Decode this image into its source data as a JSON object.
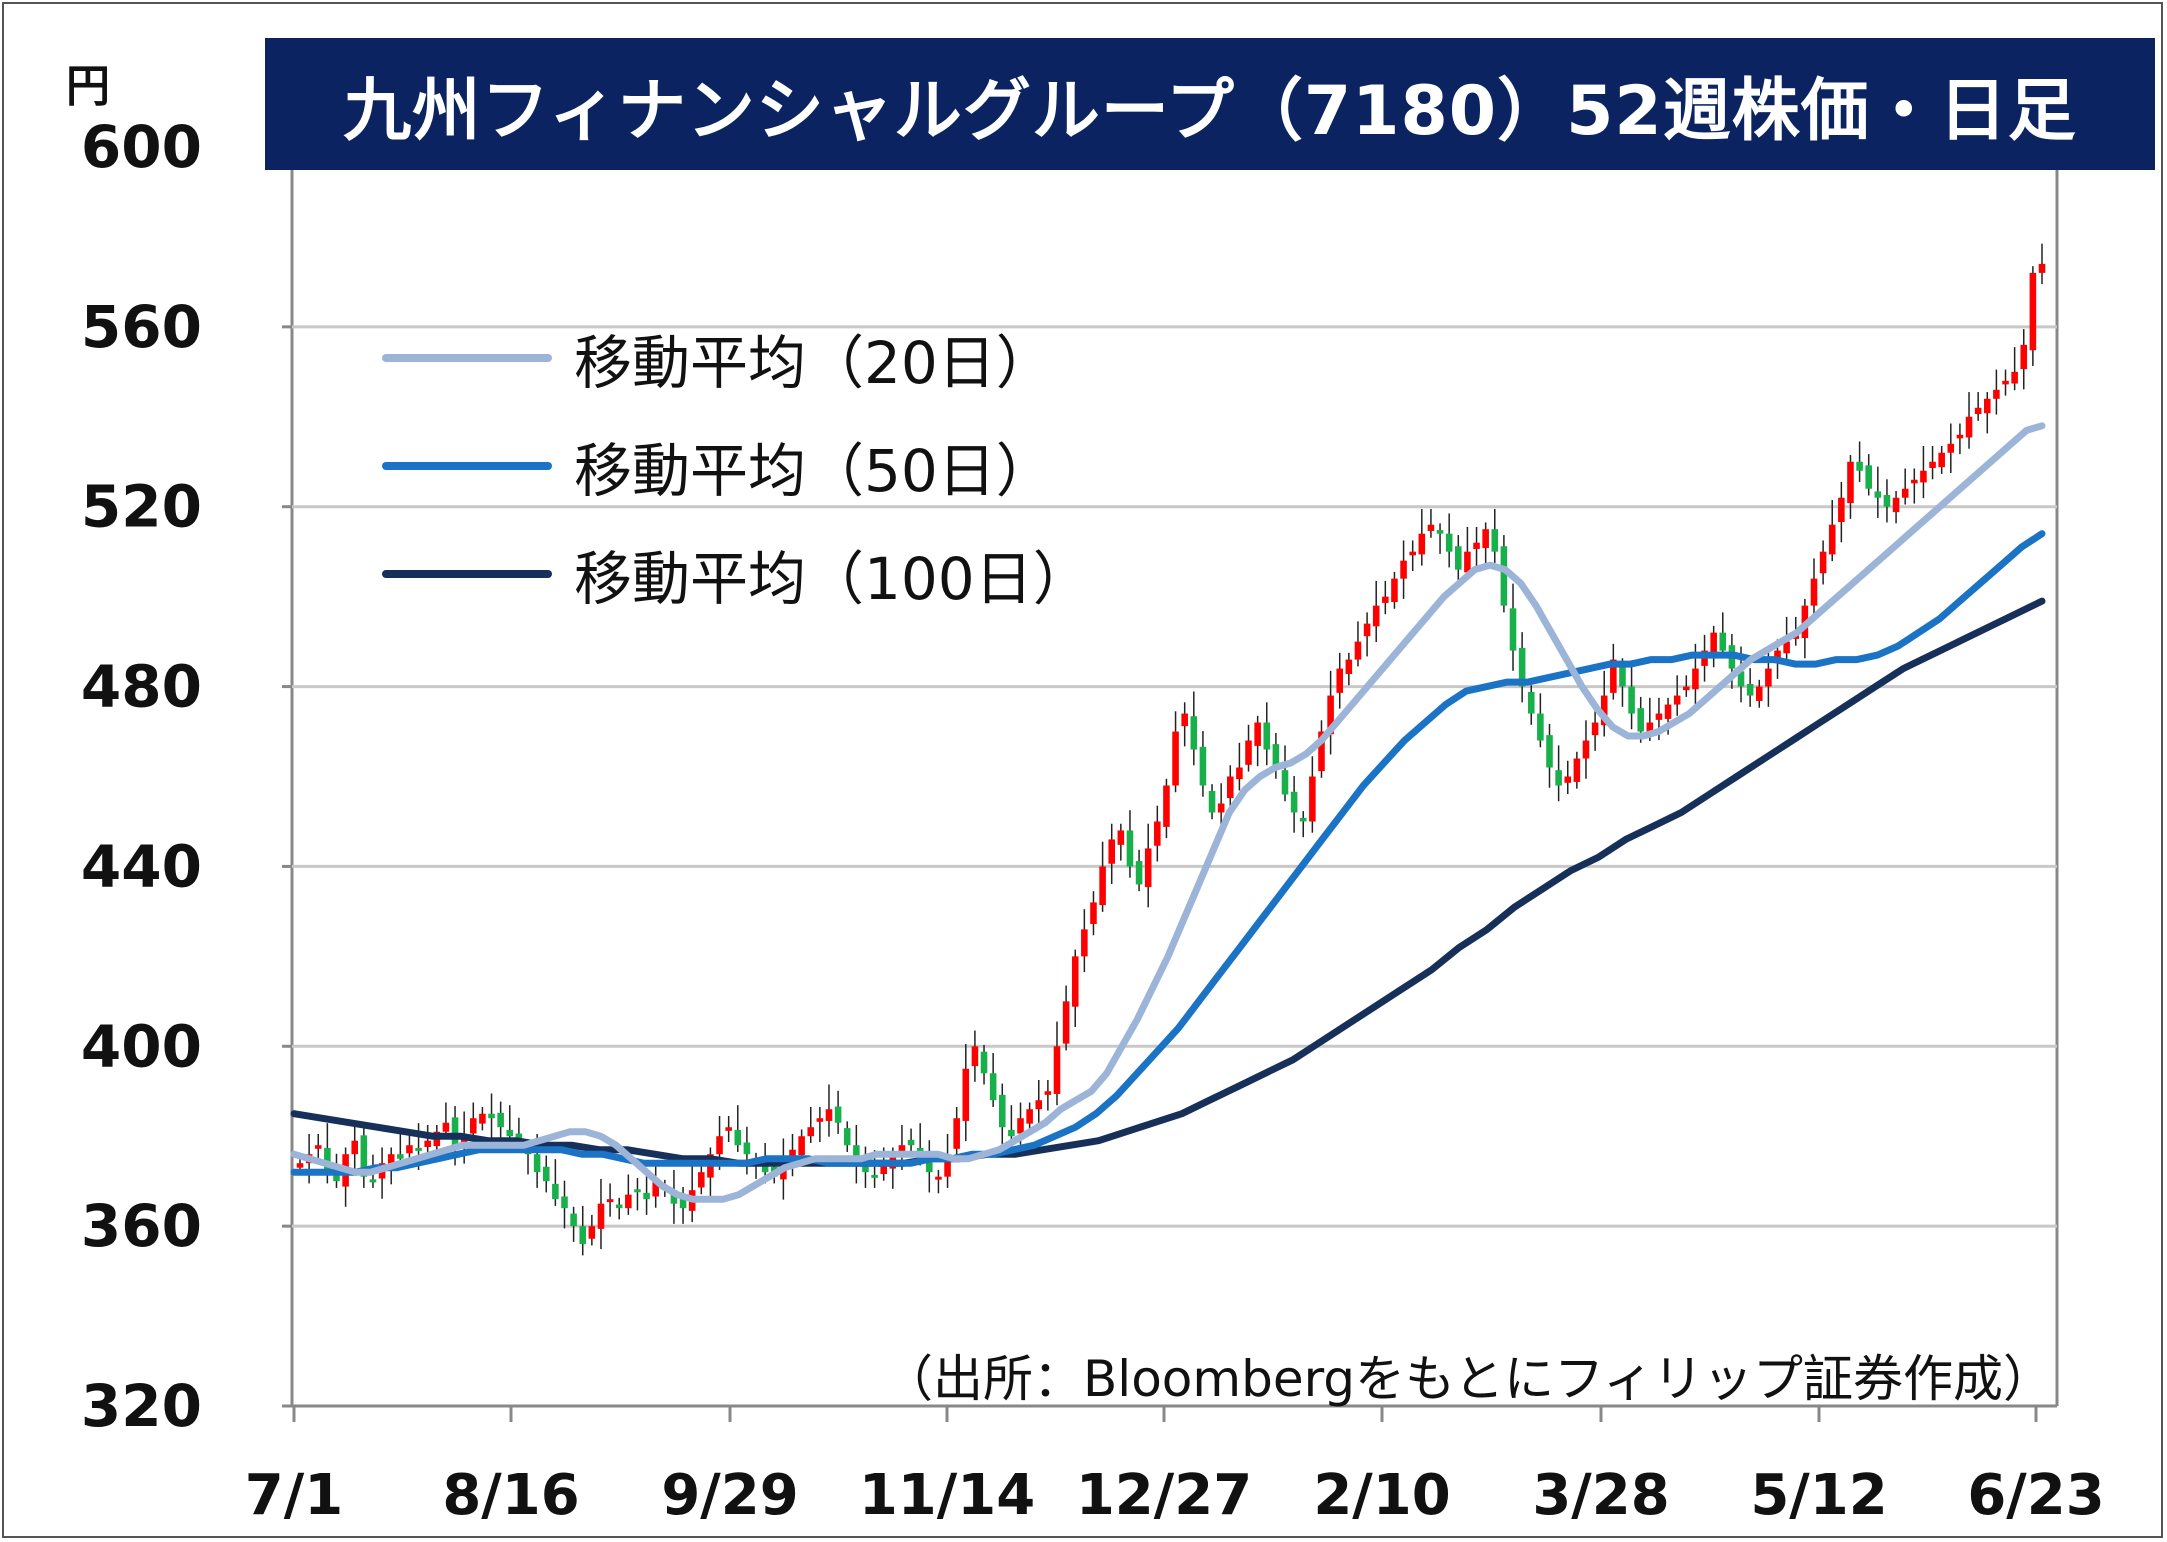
{
  "chart_data": {
    "type": "candlestick",
    "title": "九州フィナンシャルグループ（7180）52週株価・日足",
    "unit": "円",
    "source": "（出所：Bloombergをもとにフィリップ証券作成）",
    "ylim": [
      320,
      600
    ],
    "yticks": [
      "320",
      "360",
      "400",
      "440",
      "480",
      "520",
      "560",
      "600"
    ],
    "xticks": [
      "7/1",
      "8/16",
      "9/29",
      "11/14",
      "12/27",
      "2/10",
      "3/28",
      "5/12",
      "6/23"
    ],
    "grid": true,
    "legend_position": "top-left",
    "colors": {
      "up": "#ff0000",
      "down": "#18b04a",
      "ma20": "#9bb4d8",
      "ma50": "#1a73c4",
      "ma100": "#16305a",
      "title_bg": "#0b2461"
    },
    "series": [
      {
        "name": "移動平均（20日）"
      },
      {
        "name": "移動平均（50日）"
      },
      {
        "name": "移動平均（100日）"
      }
    ],
    "closes": [
      374,
      376,
      378,
      372,
      370,
      376,
      379,
      371,
      370,
      374,
      376,
      375,
      378,
      377,
      379,
      381,
      383,
      378,
      380,
      384,
      385,
      384,
      382,
      380,
      378,
      376,
      372,
      370,
      366,
      364,
      360,
      356,
      360,
      365,
      366,
      364,
      367,
      368,
      366,
      370,
      368,
      365,
      364,
      368,
      372,
      376,
      380,
      382,
      378,
      376,
      374,
      372,
      371,
      374,
      377,
      380,
      382,
      384,
      386,
      383,
      378,
      374,
      372,
      371,
      374,
      376,
      378,
      378,
      375,
      372,
      371,
      376,
      384,
      395,
      400,
      394,
      388,
      382,
      380,
      384,
      386,
      388,
      390,
      400,
      410,
      420,
      426,
      432,
      440,
      446,
      448,
      440,
      436,
      444,
      450,
      458,
      470,
      474,
      466,
      458,
      452,
      454,
      460,
      462,
      468,
      472,
      466,
      462,
      456,
      452,
      450,
      460,
      470,
      478,
      484,
      486,
      490,
      494,
      498,
      500,
      504,
      508,
      510,
      514,
      516,
      514,
      510,
      506,
      510,
      512,
      515,
      510,
      498,
      488,
      480,
      474,
      468,
      462,
      458,
      460,
      464,
      468,
      472,
      478,
      486,
      480,
      474,
      470,
      472,
      474,
      476,
      478,
      480,
      484,
      488,
      492,
      488,
      484,
      480,
      478,
      480,
      484,
      488,
      490,
      492,
      498,
      504,
      510,
      516,
      522,
      530,
      528,
      524,
      522,
      520,
      522,
      524,
      526,
      528,
      530,
      532,
      534,
      536,
      540,
      542,
      544,
      546,
      548,
      550,
      556,
      572,
      574
    ],
    "ma20": [
      376,
      375,
      374,
      373,
      372,
      372,
      373,
      374,
      375,
      376,
      377,
      378,
      378,
      378,
      378,
      378,
      379,
      380,
      381,
      381,
      380,
      378,
      375,
      372,
      369,
      367,
      366,
      366,
      366,
      367,
      369,
      371,
      373,
      374,
      375,
      375,
      375,
      375,
      376,
      376,
      376,
      376,
      376,
      375,
      375,
      376,
      377,
      379,
      381,
      383,
      386,
      388,
      390,
      394,
      400,
      406,
      413,
      420,
      428,
      436,
      444,
      452,
      457,
      460,
      462,
      463,
      465,
      468,
      472,
      476,
      480,
      484,
      488,
      492,
      496,
      500,
      503,
      506,
      507,
      506,
      503,
      498,
      492,
      486,
      480,
      475,
      471,
      469,
      469,
      470,
      472,
      474,
      477,
      480,
      483,
      486,
      488,
      490,
      492,
      495,
      498,
      501,
      504,
      507,
      510,
      513,
      516,
      519,
      522,
      525,
      528,
      531,
      534,
      537,
      538
    ],
    "ma50": [
      372,
      372,
      372,
      372,
      373,
      373,
      374,
      375,
      376,
      377,
      377,
      377,
      377,
      377,
      376,
      376,
      375,
      374,
      374,
      374,
      374,
      374,
      374,
      375,
      375,
      375,
      374,
      374,
      374,
      374,
      374,
      375,
      375,
      376,
      376,
      377,
      378,
      380,
      382,
      385,
      389,
      394,
      399,
      404,
      410,
      416,
      422,
      428,
      434,
      440,
      446,
      452,
      458,
      463,
      468,
      472,
      476,
      479,
      480,
      481,
      481,
      482,
      483,
      484,
      485,
      485,
      486,
      486,
      487,
      487,
      487,
      486,
      486,
      485,
      485,
      486,
      486,
      487,
      489,
      492,
      495,
      499,
      503,
      507,
      511,
      514
    ],
    "ma100": [
      385,
      384,
      383,
      382,
      381,
      380,
      380,
      379,
      379,
      378,
      378,
      377,
      377,
      376,
      375,
      375,
      374,
      374,
      374,
      374,
      374,
      374,
      374,
      375,
      375,
      376,
      376,
      377,
      378,
      379,
      381,
      383,
      385,
      388,
      391,
      394,
      397,
      401,
      405,
      409,
      413,
      417,
      422,
      426,
      431,
      435,
      439,
      442,
      446,
      449,
      452,
      456,
      460,
      464,
      468,
      472,
      476,
      480,
      484,
      487,
      490,
      493,
      496,
      499
    ]
  }
}
